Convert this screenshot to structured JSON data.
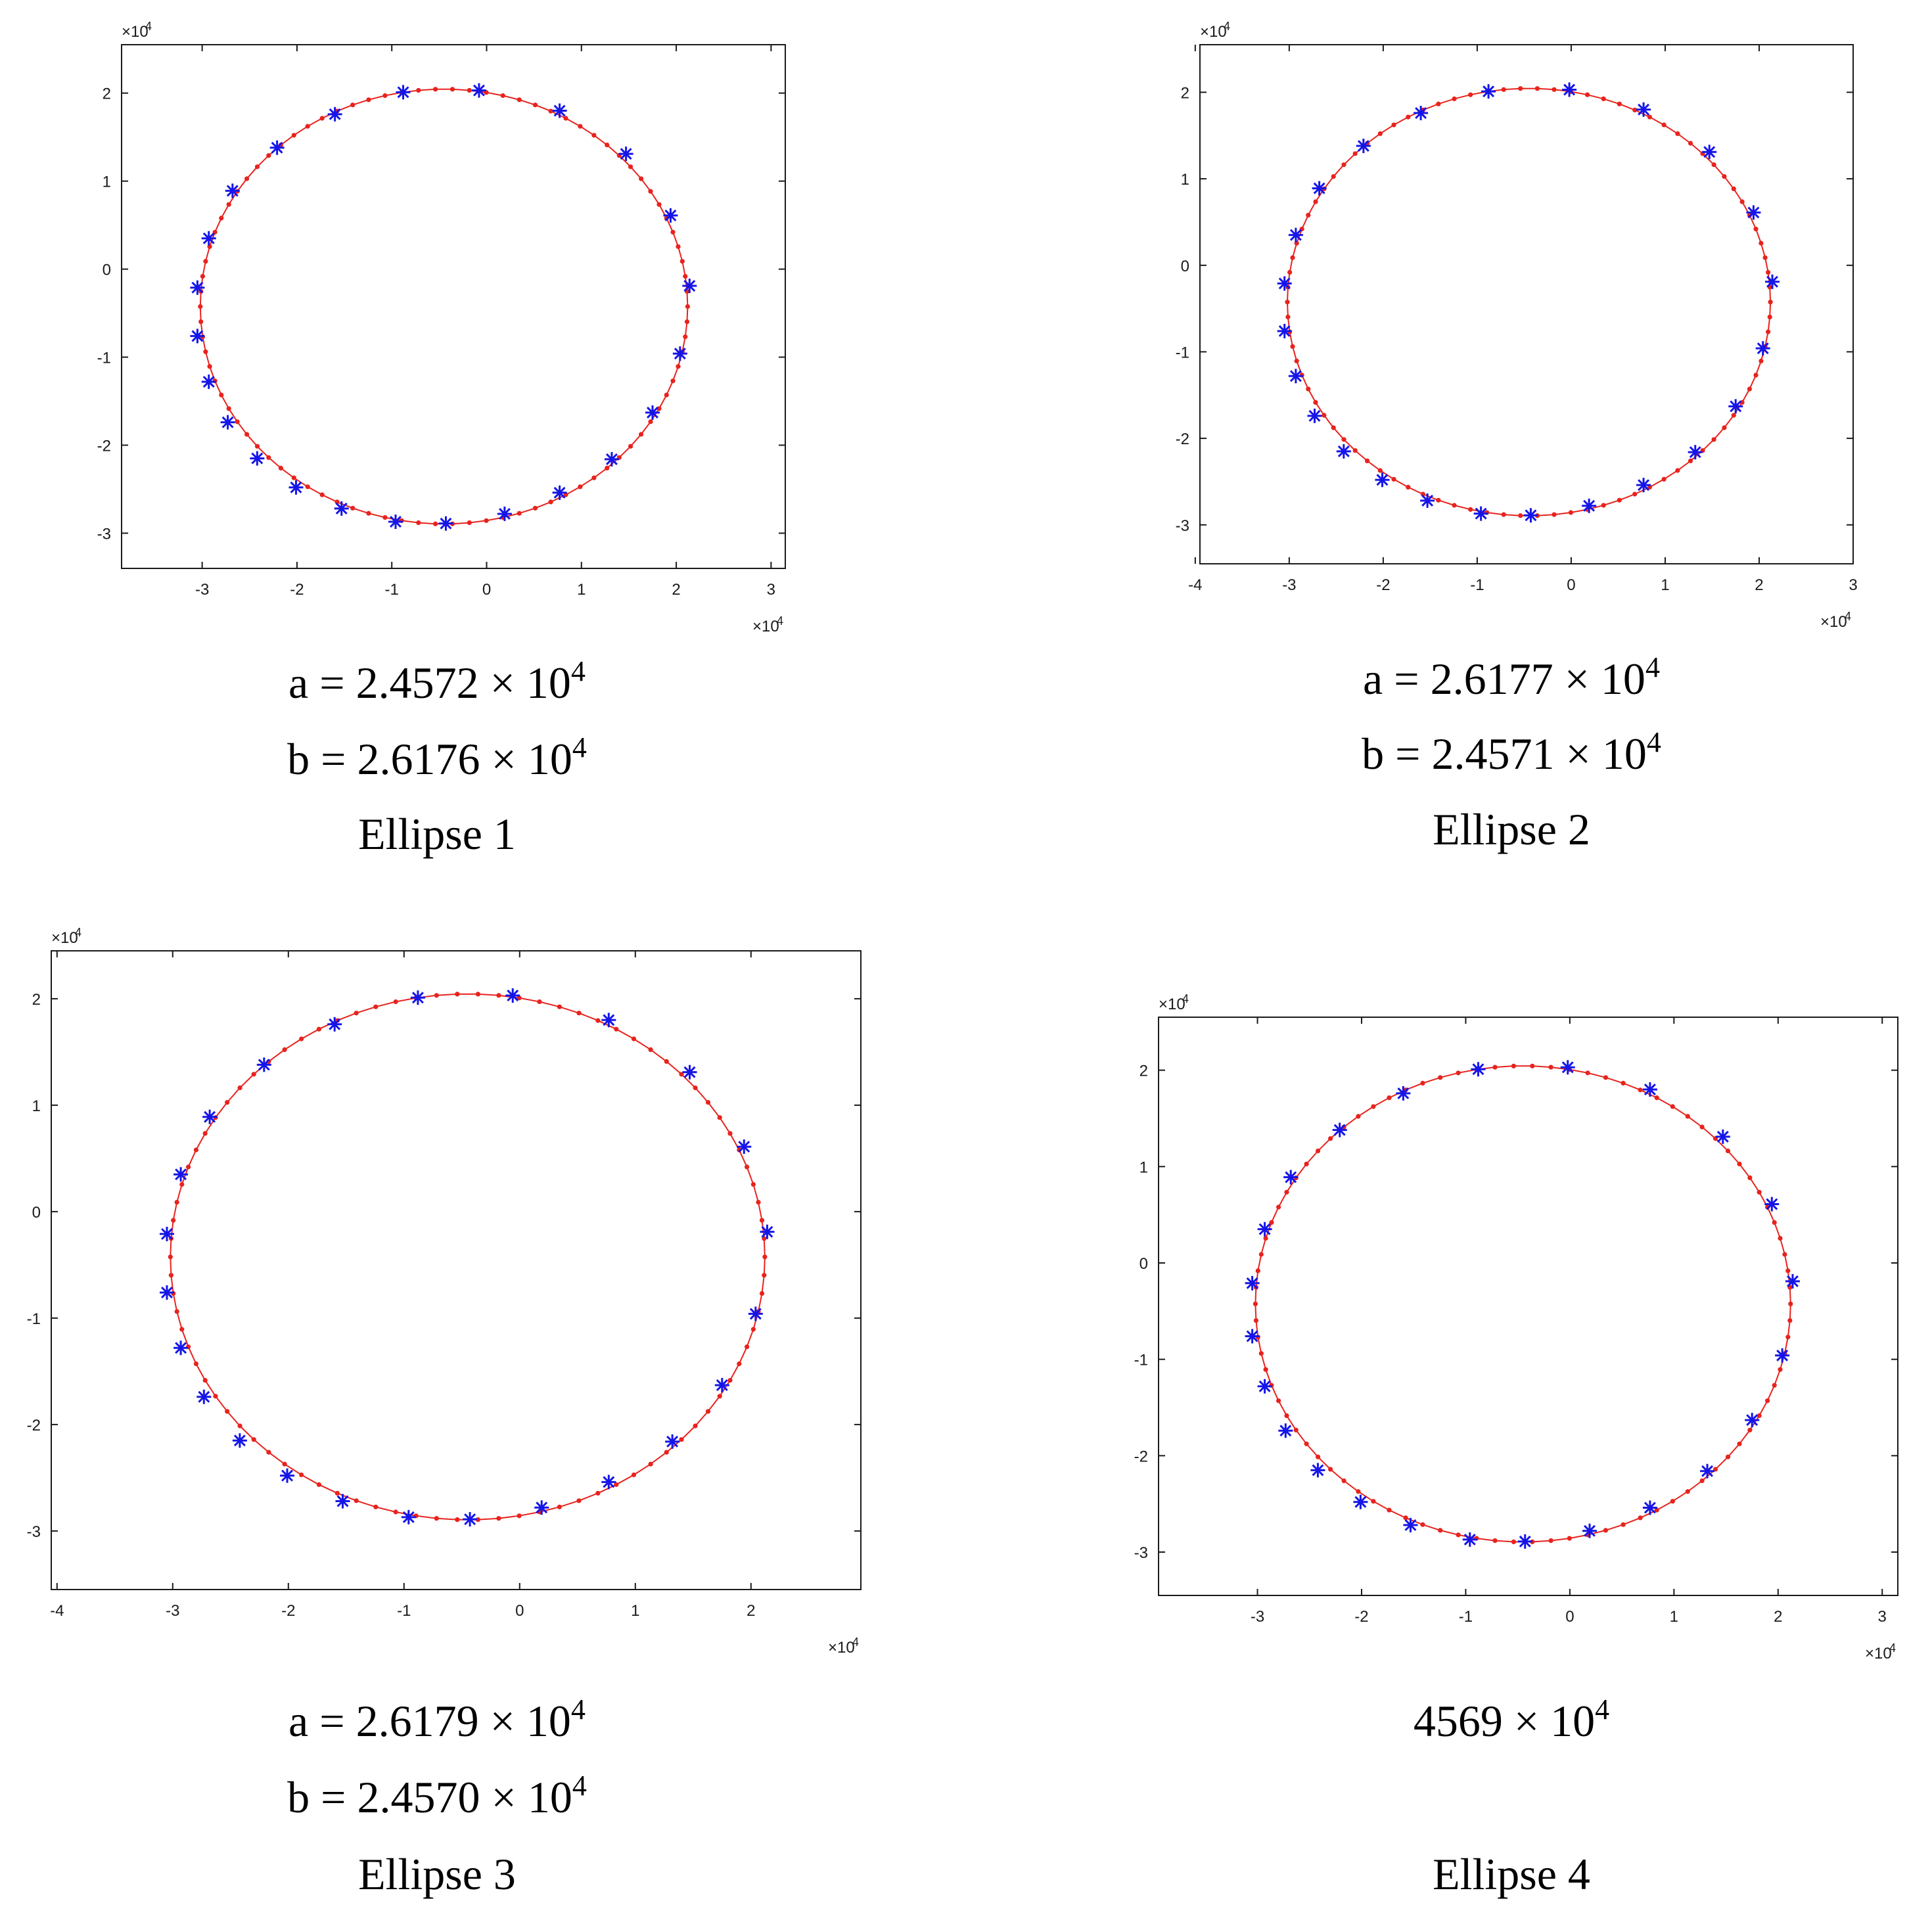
{
  "colors": {
    "curve": "#e8231d",
    "marker": "#1515e8",
    "axis": "#1a1a1a"
  },
  "chart_data": [
    {
      "type": "scatter",
      "title": "Ellipse 1",
      "caption_lines": [
        "a = 2.4572 × 10",
        "b = 2.6176 × 10",
        "Ellipse 1"
      ],
      "caption_exponents": [
        "4",
        "4",
        ""
      ],
      "x_multiplier": "×10",
      "y_multiplier": "×10",
      "multiplier_exponent": "4",
      "xlim": [
        -3.85,
        3.15
      ],
      "ylim": [
        -3.4,
        2.55
      ],
      "xticks": [
        -3,
        -2,
        -1,
        0,
        1,
        2,
        3
      ],
      "xticklabels": [
        "-3",
        "-2",
        "-1",
        "0",
        "1",
        "2",
        "3"
      ],
      "yticks": [
        -3,
        -2,
        -1,
        0,
        1,
        2
      ],
      "yticklabels": [
        "-3",
        "-2",
        "-1",
        "0",
        "1",
        "2"
      ],
      "grid": false,
      "series": [
        {
          "style": "red-dot-line",
          "ellipse": {
            "cx": -0.45,
            "cy": -0.425,
            "rx": 2.57,
            "ry": 2.47
          }
        },
        {
          "style": "blue-star",
          "x": [
            -0.08,
            0.77,
            1.47,
            1.94,
            2.14,
            2.04,
            1.75,
            1.32,
            0.77,
            0.19,
            -0.43,
            -0.96,
            -1.53,
            -2.01,
            -2.42,
            -2.73,
            -2.93,
            -3.05,
            -3.05,
            -2.93,
            -2.68,
            -2.21,
            -1.6,
            -0.88
          ],
          "y": [
            2.03,
            1.8,
            1.31,
            0.61,
            -0.19,
            -0.96,
            -1.63,
            -2.16,
            -2.54,
            -2.78,
            -2.89,
            -2.87,
            -2.72,
            -2.48,
            -2.15,
            -1.74,
            -1.28,
            -0.76,
            -0.21,
            0.35,
            0.89,
            1.38,
            1.76,
            2.01
          ]
        }
      ]
    },
    {
      "type": "scatter",
      "title": "Ellipse 2",
      "caption_lines": [
        "a = 2.6177 × 10",
        "b = 2.4571 × 10",
        "Ellipse 2"
      ],
      "caption_exponents": [
        "4",
        "4",
        ""
      ],
      "x_multiplier": "×10",
      "y_multiplier": "×10",
      "multiplier_exponent": "4",
      "xlim": [
        -3.95,
        3.0
      ],
      "ylim": [
        -3.45,
        2.55
      ],
      "xticks": [
        -4,
        -3,
        -2,
        -1,
        0,
        1,
        2,
        3
      ],
      "xticklabels": [
        "-4",
        "-3",
        "-2",
        "-1",
        "0",
        "1",
        "2",
        "3"
      ],
      "yticks": [
        -3,
        -2,
        -1,
        0,
        1,
        2
      ],
      "yticklabels": [
        "-3",
        "-2",
        "-1",
        "0",
        "1",
        "2"
      ],
      "grid": false,
      "series": [
        {
          "style": "red-dot-line",
          "ellipse": {
            "cx": -0.45,
            "cy": -0.425,
            "rx": 2.57,
            "ry": 2.47
          }
        },
        {
          "style": "blue-star",
          "x": [
            -0.02,
            0.77,
            1.47,
            1.94,
            2.14,
            2.04,
            1.75,
            1.32,
            0.77,
            0.19,
            -0.43,
            -0.96,
            -1.53,
            -2.01,
            -2.42,
            -2.73,
            -2.93,
            -3.05,
            -3.05,
            -2.93,
            -2.68,
            -2.21,
            -1.6,
            -0.88
          ],
          "y": [
            2.03,
            1.8,
            1.31,
            0.61,
            -0.19,
            -0.96,
            -1.63,
            -2.16,
            -2.54,
            -2.78,
            -2.89,
            -2.87,
            -2.72,
            -2.48,
            -2.15,
            -1.74,
            -1.28,
            -0.76,
            -0.21,
            0.35,
            0.89,
            1.38,
            1.76,
            2.01
          ]
        }
      ]
    },
    {
      "type": "scatter",
      "title": "Ellipse 3",
      "caption_lines": [
        "a = 2.6179 × 10",
        "b = 2.4570 × 10",
        "Ellipse 3"
      ],
      "caption_exponents": [
        "4",
        "4",
        ""
      ],
      "x_multiplier": "×10",
      "y_multiplier": "×10",
      "multiplier_exponent": "4",
      "xlim": [
        -4.05,
        2.95
      ],
      "ylim": [
        -3.55,
        2.45
      ],
      "xticks": [
        -4,
        -3,
        -2,
        -1,
        0,
        1,
        2
      ],
      "xticklabels": [
        "-4",
        "-3",
        "-2",
        "-1",
        "0",
        "1",
        "2"
      ],
      "yticks": [
        -3,
        -2,
        -1,
        0,
        1,
        2
      ],
      "yticklabels": [
        "-3",
        "-2",
        "-1",
        "0",
        "1",
        "2"
      ],
      "grid": false,
      "series": [
        {
          "style": "red-dot-line",
          "ellipse": {
            "cx": -0.45,
            "cy": -0.425,
            "rx": 2.57,
            "ry": 2.47
          }
        },
        {
          "style": "blue-star",
          "x": [
            -0.06,
            0.77,
            1.47,
            1.94,
            2.14,
            2.04,
            1.75,
            1.32,
            0.77,
            0.19,
            -0.43,
            -0.96,
            -1.53,
            -2.01,
            -2.42,
            -2.73,
            -2.93,
            -3.05,
            -3.05,
            -2.93,
            -2.68,
            -2.21,
            -1.6,
            -0.88
          ],
          "y": [
            2.03,
            1.8,
            1.31,
            0.61,
            -0.19,
            -0.96,
            -1.63,
            -2.16,
            -2.54,
            -2.78,
            -2.89,
            -2.87,
            -2.72,
            -2.48,
            -2.15,
            -1.74,
            -1.28,
            -0.76,
            -0.21,
            0.35,
            0.89,
            1.38,
            1.76,
            2.01
          ]
        }
      ]
    },
    {
      "type": "scatter",
      "title": "Ellipse 4",
      "caption_lines": [
        "4569 × 10",
        "",
        "Ellipse 4"
      ],
      "caption_exponents": [
        "4",
        "",
        ""
      ],
      "x_multiplier": "×10",
      "y_multiplier": "×10",
      "multiplier_exponent": "4",
      "xlim": [
        -3.95,
        3.15
      ],
      "ylim": [
        -3.45,
        2.55
      ],
      "xticks": [
        -3,
        -2,
        -1,
        0,
        1,
        2,
        3
      ],
      "xticklabels": [
        "-3",
        "-2",
        "-1",
        "0",
        "1",
        "2",
        "3"
      ],
      "yticks": [
        -3,
        -2,
        -1,
        0,
        1,
        2
      ],
      "yticklabels": [
        "-3",
        "-2",
        "-1",
        "0",
        "1",
        "2"
      ],
      "grid": false,
      "series": [
        {
          "style": "red-dot-line",
          "ellipse": {
            "cx": -0.45,
            "cy": -0.425,
            "rx": 2.57,
            "ry": 2.47
          }
        },
        {
          "style": "blue-star",
          "x": [
            -0.02,
            0.77,
            1.47,
            1.94,
            2.14,
            2.04,
            1.75,
            1.32,
            0.77,
            0.19,
            -0.43,
            -0.96,
            -1.53,
            -2.01,
            -2.42,
            -2.73,
            -2.93,
            -3.05,
            -3.05,
            -2.93,
            -2.68,
            -2.21,
            -1.6,
            -0.88
          ],
          "y": [
            2.03,
            1.8,
            1.31,
            0.61,
            -0.19,
            -0.96,
            -1.63,
            -2.16,
            -2.54,
            -2.78,
            -2.89,
            -2.87,
            -2.72,
            -2.48,
            -2.15,
            -1.74,
            -1.28,
            -0.76,
            -0.21,
            0.35,
            0.89,
            1.38,
            1.76,
            2.01
          ]
        }
      ]
    }
  ]
}
